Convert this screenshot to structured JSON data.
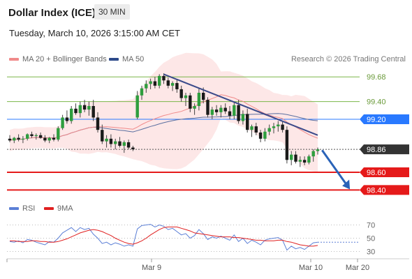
{
  "header": {
    "title": "Dollar Index (ICE)",
    "timeframe": "30 MIN",
    "datetime": "Tuesday, March 10, 2026 3:15:00 AM CET"
  },
  "legend": {
    "ma20_label": "MA 20 + Bollinger Bands",
    "ma20_color": "#f08a8a",
    "ma50_label": "MA 50",
    "ma50_color": "#2d4a8a",
    "copyright": "Research © 2026 Trading Central"
  },
  "rsi_legend": {
    "rsi_label": "RSI",
    "rsi_color": "#5b7fd6",
    "ma9_label": "9MA",
    "ma9_color": "#e02020"
  },
  "chart_data": [
    {
      "type": "candlestick",
      "title": "Dollar Index (ICE)",
      "ylim": [
        98.3,
        99.8
      ],
      "x_ticks": [
        "Mar 9",
        "Mar 10",
        "Mar 20"
      ],
      "levels": [
        {
          "value": 99.68,
          "label": "99.68",
          "color": "#7ab648",
          "style": "line"
        },
        {
          "value": 99.4,
          "label": "99.40",
          "color": "#7ab648",
          "style": "line"
        },
        {
          "value": 99.2,
          "label": "99.20",
          "color": "#2979ff",
          "style": "badge"
        },
        {
          "value": 98.86,
          "label": "98.86",
          "color": "#333333",
          "style": "badge"
        },
        {
          "value": 98.6,
          "label": "98.60",
          "color": "#e51a1a",
          "style": "badge"
        },
        {
          "value": 98.4,
          "label": "98.40",
          "color": "#e51a1a",
          "style": "badge"
        }
      ],
      "trendline": {
        "from": [
          35,
          99.71
        ],
        "to": [
          70,
          99.02
        ],
        "color": "#3a4a8a"
      },
      "forecast_arrow": {
        "from": [
          71,
          98.85
        ],
        "to": [
          77,
          98.43
        ],
        "color": "#2a63b8"
      },
      "candles": [
        [
          98.98,
          99.02,
          98.94,
          98.96
        ],
        [
          98.96,
          99.0,
          98.93,
          98.99
        ],
        [
          98.99,
          99.03,
          98.95,
          98.97
        ],
        [
          98.97,
          99.01,
          98.93,
          98.98
        ],
        [
          98.98,
          99.04,
          98.96,
          99.03
        ],
        [
          99.03,
          99.06,
          98.99,
          99.01
        ],
        [
          99.01,
          99.04,
          98.97,
          99.02
        ],
        [
          99.02,
          99.05,
          98.98,
          98.99
        ],
        [
          98.99,
          99.02,
          98.94,
          98.96
        ],
        [
          98.96,
          99.0,
          98.93,
          98.99
        ],
        [
          98.99,
          99.03,
          98.95,
          98.97
        ],
        [
          98.97,
          99.12,
          98.95,
          99.1
        ],
        [
          99.1,
          99.25,
          99.08,
          99.22
        ],
        [
          99.22,
          99.3,
          99.15,
          99.18
        ],
        [
          99.18,
          99.35,
          99.15,
          99.32
        ],
        [
          99.32,
          99.38,
          99.25,
          99.27
        ],
        [
          99.27,
          99.4,
          99.22,
          99.36
        ],
        [
          99.36,
          99.42,
          99.28,
          99.31
        ],
        [
          99.31,
          99.4,
          99.24,
          99.35
        ],
        [
          99.35,
          99.42,
          99.18,
          99.22
        ],
        [
          99.22,
          99.28,
          99.05,
          99.08
        ],
        [
          99.08,
          99.14,
          98.92,
          98.95
        ],
        [
          98.95,
          99.02,
          98.88,
          98.98
        ],
        [
          98.98,
          99.03,
          98.88,
          98.92
        ],
        [
          98.92,
          98.98,
          98.86,
          98.95
        ],
        [
          98.95,
          99.0,
          98.88,
          98.9
        ],
        [
          98.9,
          98.96,
          98.82,
          98.94
        ],
        [
          98.94,
          98.97,
          98.86,
          98.88
        ],
        [
          98.88,
          98.9,
          98.84,
          98.86
        ],
        [
          99.22,
          99.52,
          99.2,
          99.47
        ],
        [
          99.47,
          99.58,
          99.42,
          99.55
        ],
        [
          99.55,
          99.64,
          99.5,
          99.6
        ],
        [
          99.6,
          99.66,
          99.54,
          99.63
        ],
        [
          99.63,
          99.68,
          99.55,
          99.58
        ],
        [
          99.58,
          99.71,
          99.55,
          99.69
        ],
        [
          99.69,
          99.72,
          99.6,
          99.64
        ],
        [
          99.64,
          99.67,
          99.55,
          99.58
        ],
        [
          99.58,
          99.63,
          99.52,
          99.61
        ],
        [
          99.61,
          99.65,
          99.5,
          99.54
        ],
        [
          99.54,
          99.58,
          99.4,
          99.44
        ],
        [
          99.44,
          99.5,
          99.35,
          99.47
        ],
        [
          99.47,
          99.5,
          99.28,
          99.32
        ],
        [
          99.32,
          99.38,
          99.25,
          99.35
        ],
        [
          99.35,
          99.55,
          99.3,
          99.5
        ],
        [
          99.5,
          99.56,
          99.38,
          99.42
        ],
        [
          99.42,
          99.45,
          99.22,
          99.25
        ],
        [
          99.25,
          99.34,
          99.2,
          99.31
        ],
        [
          99.31,
          99.36,
          99.24,
          99.28
        ],
        [
          99.28,
          99.36,
          99.22,
          99.33
        ],
        [
          99.33,
          99.38,
          99.26,
          99.29
        ],
        [
          99.29,
          99.35,
          99.2,
          99.24
        ],
        [
          99.24,
          99.4,
          99.2,
          99.36
        ],
        [
          99.36,
          99.42,
          99.15,
          99.18
        ],
        [
          99.18,
          99.3,
          99.14,
          99.26
        ],
        [
          99.26,
          99.32,
          99.05,
          99.08
        ],
        [
          99.08,
          99.14,
          99.0,
          99.12
        ],
        [
          99.12,
          99.16,
          99.02,
          99.05
        ],
        [
          99.05,
          99.08,
          98.94,
          98.98
        ],
        [
          98.98,
          99.1,
          98.95,
          99.06
        ],
        [
          99.06,
          99.14,
          99.02,
          99.1
        ],
        [
          99.1,
          99.16,
          99.04,
          99.12
        ],
        [
          99.12,
          99.18,
          99.06,
          99.14
        ],
        [
          99.14,
          99.17,
          99.05,
          99.08
        ],
        [
          99.08,
          99.12,
          98.7,
          98.74
        ],
        [
          98.74,
          98.84,
          98.68,
          98.8
        ],
        [
          98.8,
          98.84,
          98.7,
          98.72
        ],
        [
          98.72,
          98.78,
          98.66,
          98.74
        ],
        [
          98.74,
          98.78,
          98.68,
          98.71
        ],
        [
          98.71,
          98.8,
          98.69,
          98.78
        ],
        [
          98.78,
          98.86,
          98.72,
          98.84
        ],
        [
          98.84,
          98.88,
          98.8,
          98.86
        ]
      ]
    },
    {
      "type": "line",
      "title": "RSI",
      "ylim": [
        20,
        80
      ],
      "y_ticks": [
        70,
        50,
        30
      ],
      "series": [
        {
          "name": "RSI",
          "values": [
            45,
            44,
            46,
            43,
            48,
            47,
            44,
            42,
            40,
            45,
            44,
            50,
            58,
            62,
            66,
            60,
            66,
            63,
            65,
            56,
            50,
            42,
            44,
            40,
            43,
            41,
            38,
            40,
            38,
            64,
            69,
            70,
            71,
            67,
            70,
            68,
            63,
            65,
            60,
            55,
            57,
            50,
            54,
            63,
            57,
            48,
            52,
            50,
            53,
            50,
            47,
            55,
            45,
            50,
            42,
            47,
            44,
            40,
            47,
            49,
            50,
            51,
            47,
            32,
            38,
            34,
            36,
            33,
            38,
            43,
            44
          ]
        },
        {
          "name": "9MA",
          "values": [
            46,
            46,
            45,
            45,
            45,
            46,
            46,
            45,
            45,
            44,
            44,
            45,
            47,
            49,
            52,
            55,
            58,
            60,
            62,
            63,
            62,
            60,
            57,
            54,
            50,
            47,
            44,
            42,
            41,
            43,
            46,
            50,
            55,
            59,
            63,
            66,
            67,
            67,
            67,
            65,
            63,
            61,
            58,
            57,
            56,
            55,
            54,
            53,
            52,
            52,
            52,
            51,
            51,
            50,
            49,
            48,
            47,
            47,
            46,
            46,
            46,
            47,
            47,
            45,
            44,
            42,
            40,
            39,
            38,
            38,
            39
          ]
        }
      ]
    }
  ]
}
